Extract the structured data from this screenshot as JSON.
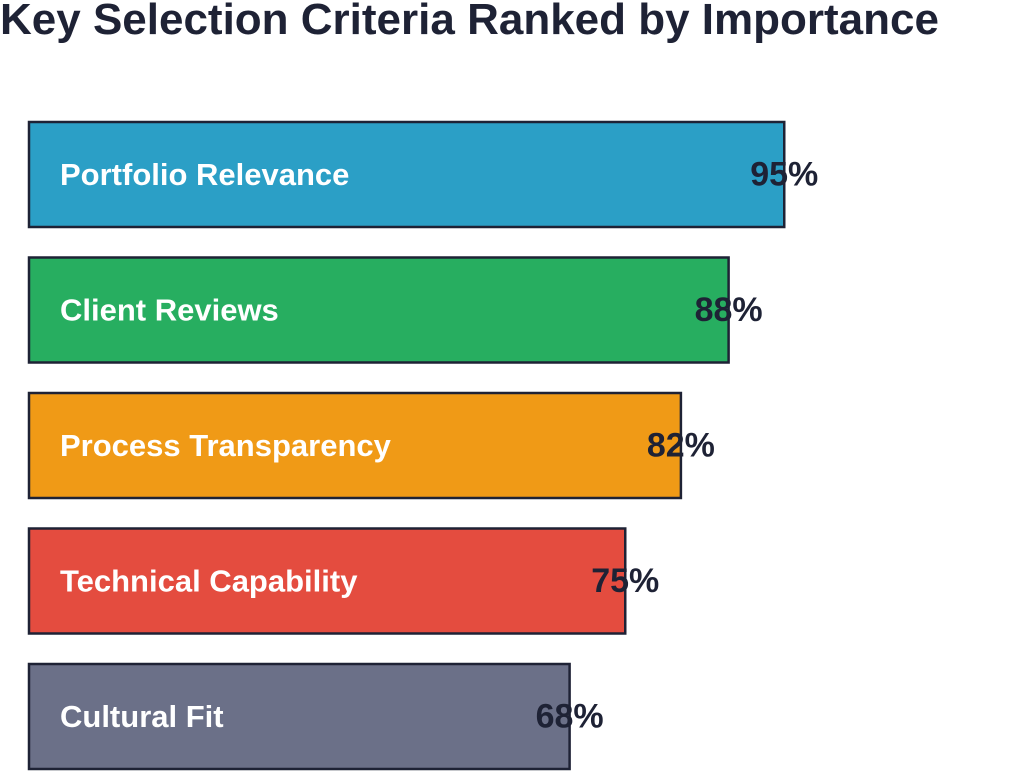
{
  "chart_data": {
    "type": "bar",
    "orientation": "horizontal",
    "title": "Key Selection Criteria Ranked by Importance",
    "categories": [
      "Portfolio Relevance",
      "Client Reviews",
      "Process Transparency",
      "Technical Capability",
      "Cultural Fit"
    ],
    "values": [
      95,
      88,
      82,
      75,
      68
    ],
    "value_labels": [
      "95%",
      "88%",
      "82%",
      "75%",
      "68%"
    ],
    "colors": [
      "#2b9fc6",
      "#27ae60",
      "#f09a16",
      "#e44c3f",
      "#6b7088"
    ],
    "xlim": [
      0,
      100
    ],
    "grid": false,
    "legend": "none"
  }
}
